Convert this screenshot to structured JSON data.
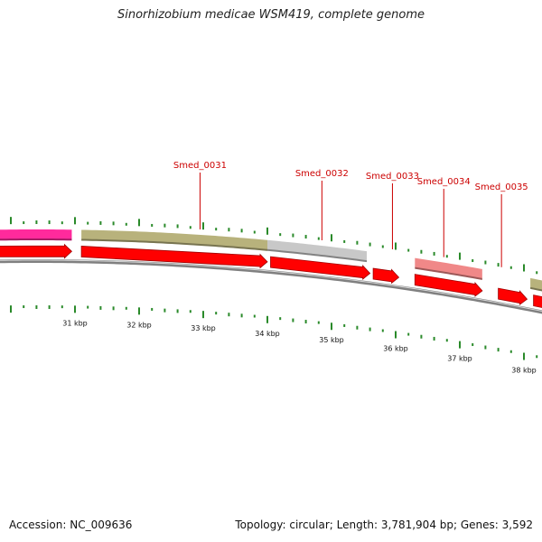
{
  "title": "Sinorhizobium medicae WSM419, complete genome",
  "footer": {
    "accession": "Accession: NC_009636",
    "summary": "Topology: circular; Length: 3,781,904 bp; Genes: 3,592"
  },
  "colors": {
    "cds": "#ff0000",
    "magenta_feature": "#ff2a9c",
    "olive_feature": "#b8b27c",
    "gray_feature": "#c8c8c8",
    "pink_feature": "#f08888",
    "tick": "#2a8a2a",
    "backbone": "#808080",
    "label": "#cc0000"
  },
  "gene_labels": [
    {
      "name": "Smed_0031",
      "kbp": 32.95
    },
    {
      "name": "Smed_0032",
      "kbp": 34.85
    },
    {
      "name": "Smed_0033",
      "kbp": 35.95
    },
    {
      "name": "Smed_0034",
      "kbp": 36.75
    },
    {
      "name": "Smed_0035",
      "kbp": 37.65
    }
  ],
  "kbp_labels": [
    "31 kbp",
    "32 kbp",
    "33 kbp",
    "34 kbp",
    "35 kbp",
    "36 kbp",
    "37 kbp",
    "38 kbp"
  ],
  "features": [
    {
      "lane": "upper",
      "start_kbp": 29.7,
      "end_kbp": 30.95,
      "color_key": "magenta_feature"
    },
    {
      "lane": "upper",
      "start_kbp": 31.1,
      "end_kbp": 34.0,
      "color_key": "olive_feature"
    },
    {
      "lane": "upper",
      "start_kbp": 34.0,
      "end_kbp": 35.55,
      "color_key": "gray_feature"
    },
    {
      "lane": "upper",
      "start_kbp": 36.3,
      "end_kbp": 37.35,
      "color_key": "pink_feature"
    },
    {
      "lane": "upper",
      "start_kbp": 38.1,
      "end_kbp": 38.6,
      "color_key": "olive_feature"
    }
  ],
  "cds": [
    {
      "start_kbp": 29.7,
      "end_kbp": 30.95
    },
    {
      "start_kbp": 31.1,
      "end_kbp": 34.0
    },
    {
      "start_kbp": 34.05,
      "end_kbp": 35.6
    },
    {
      "start_kbp": 35.65,
      "end_kbp": 36.05
    },
    {
      "start_kbp": 36.3,
      "end_kbp": 37.35
    },
    {
      "start_kbp": 37.6,
      "end_kbp": 38.05
    },
    {
      "start_kbp": 38.15,
      "end_kbp": 38.6
    }
  ],
  "tick_range_kbp": [
    29.8,
    38.6
  ]
}
